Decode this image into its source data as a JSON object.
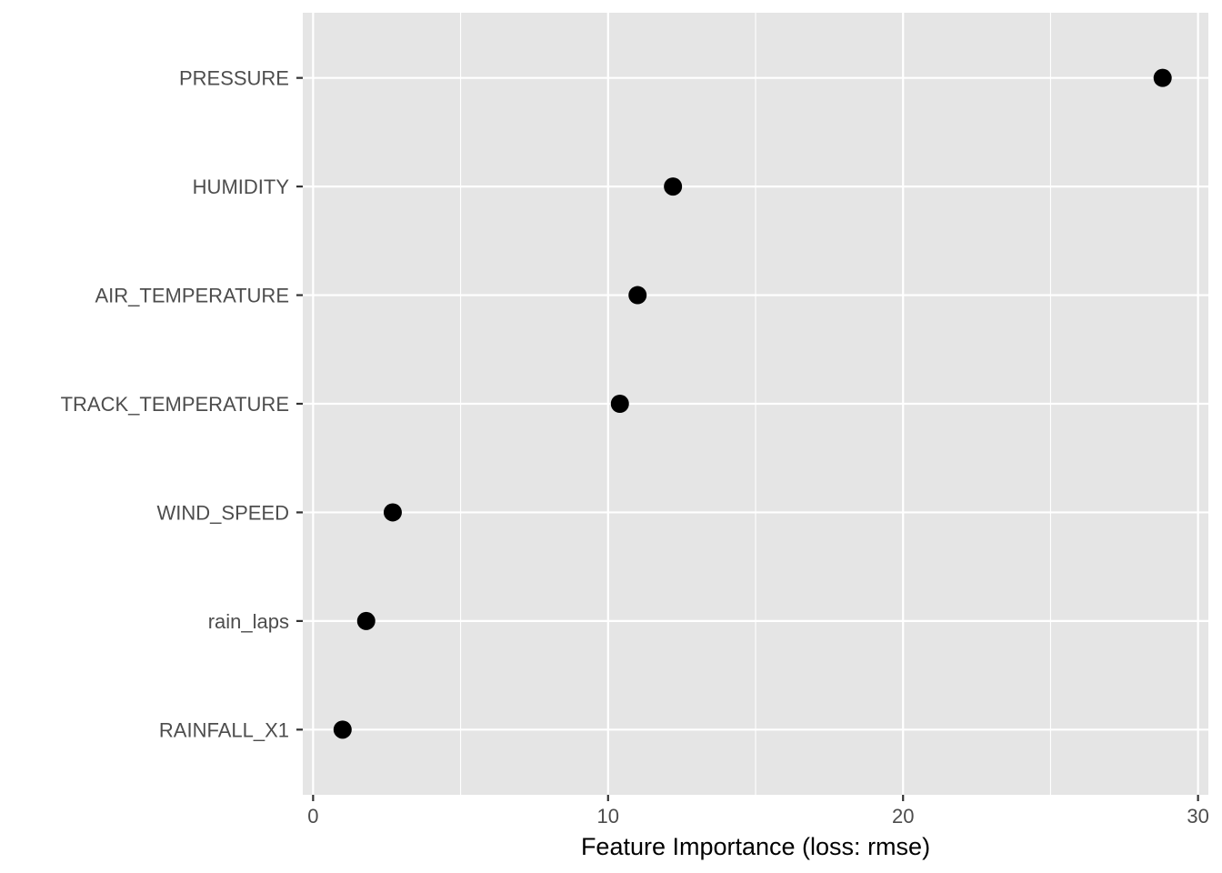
{
  "chart_data": {
    "type": "scatter",
    "categories": [
      "PRESSURE",
      "HUMIDITY",
      "AIR_TEMPERATURE",
      "TRACK_TEMPERATURE",
      "WIND_SPEED",
      "rain_laps",
      "RAINFALL_X1"
    ],
    "values": [
      28.8,
      12.2,
      11.0,
      10.4,
      2.7,
      1.8,
      1.0
    ],
    "xlabel": "Feature Importance (loss: rmse)",
    "ylabel": "",
    "title": "",
    "xlim": [
      -0.35,
      30.35
    ],
    "x_major_ticks": [
      0,
      10,
      20,
      30
    ],
    "x_minor_ticks": [
      5,
      15,
      25
    ],
    "grid": true,
    "legend": "none",
    "colors": {
      "panel": "#e5e5e5",
      "grid": "#ffffff",
      "point": "#000000",
      "tick_text": "#4d4d4d",
      "tick_mark": "#333333"
    }
  }
}
